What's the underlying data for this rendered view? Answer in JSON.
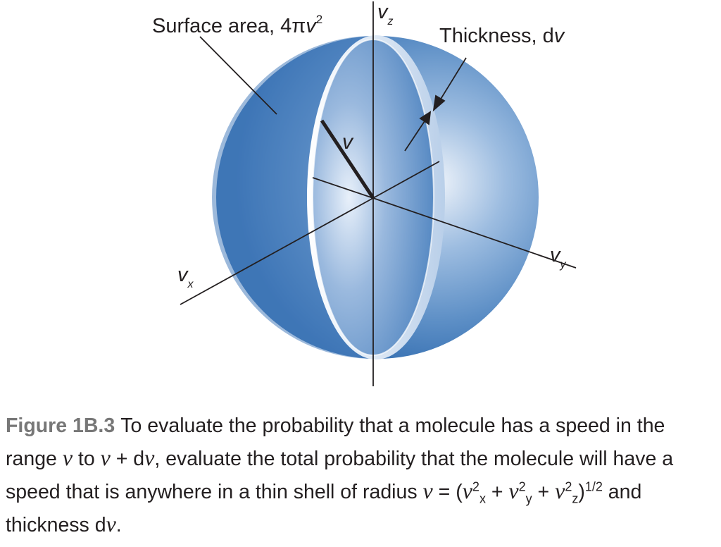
{
  "labels": {
    "surface_prefix": "Surface area, 4π",
    "surface_var": "v",
    "surface_exp": "2",
    "thickness_prefix": "Thickness, d",
    "thickness_var": "v",
    "radius": "v",
    "axis_vz": "v",
    "axis_vz_sub": "z",
    "axis_vx": "v",
    "axis_vx_sub": "x",
    "axis_vy": "v",
    "axis_vy_sub": "y"
  },
  "caption": {
    "figure_number": "Figure 1B.3",
    "t1": "To evaluate the probability that a molecule has a speed in the range ",
    "v1": "v",
    "t2": " to ",
    "v2": "v",
    "t3": " + d",
    "v3": "v",
    "t4": ", evaluate the total probability that the molecule will have a speed that is anywhere in a thin shell of radius ",
    "v4": "v",
    "t5": " = (",
    "v5": "v",
    "s5": "x",
    "e5": "2",
    "t6": " + ",
    "v6": "v",
    "s6": "y",
    "e6": "2",
    "t7": " + ",
    "v7": "v",
    "s7": "z",
    "e7": "2",
    "t8": ")",
    "e8": "1/2",
    "t9": " and thickness d",
    "v9": "v",
    "t10": "."
  },
  "colors": {
    "sphere_dark": "#2f6aae",
    "sphere_mid": "#5d8fc6",
    "sphere_light": "#eef3fa",
    "ink": "#231f20",
    "figure_number": "#777777"
  }
}
